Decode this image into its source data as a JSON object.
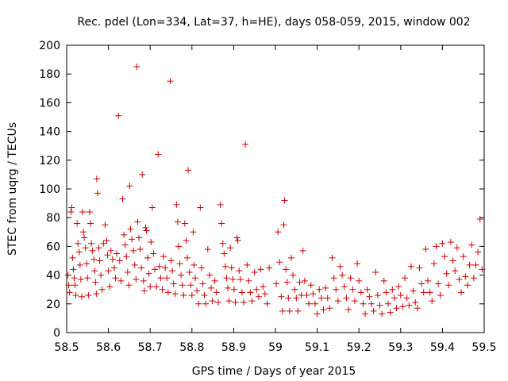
{
  "chart_data": {
    "type": "scatter",
    "title": "Rec. pdel (Lon=334, Lat=37, h=HE), days 058-059, 2015, window 002",
    "xlabel": "GPS time / Days of year 2015",
    "ylabel": "STEC from uqrg / TECUs",
    "xlim": [
      58.5,
      59.5
    ],
    "ylim": [
      0,
      200
    ],
    "xticks": [
      58.5,
      58.6,
      58.7,
      58.8,
      58.9,
      59,
      59.1,
      59.2,
      59.3,
      59.4,
      59.5
    ],
    "xtick_labels": [
      "58.5",
      "58.6",
      "58.7",
      "58.8",
      "58.9",
      "59",
      "59.1",
      "59.2",
      "59.3",
      "59.4",
      "59.5"
    ],
    "yticks": [
      0,
      20,
      40,
      60,
      80,
      100,
      120,
      140,
      160,
      180,
      200
    ],
    "ytick_labels": [
      "0",
      "20",
      "40",
      "60",
      "80",
      "100",
      "120",
      "140",
      "160",
      "180",
      "200"
    ],
    "marker": "+",
    "color": "#cc0000",
    "grid": false,
    "series": [
      {
        "name": "STEC",
        "points": [
          [
            58.503,
            40
          ],
          [
            58.505,
            33
          ],
          [
            58.507,
            28
          ],
          [
            58.51,
            84
          ],
          [
            58.512,
            87
          ],
          [
            58.514,
            52
          ],
          [
            58.516,
            44
          ],
          [
            58.518,
            38
          ],
          [
            58.52,
            33
          ],
          [
            58.522,
            26
          ],
          [
            58.525,
            76
          ],
          [
            58.527,
            62
          ],
          [
            58.53,
            56
          ],
          [
            58.532,
            47
          ],
          [
            58.534,
            37
          ],
          [
            58.536,
            25
          ],
          [
            58.538,
            84
          ],
          [
            58.54,
            70
          ],
          [
            58.542,
            66
          ],
          [
            58.545,
            59
          ],
          [
            58.548,
            48
          ],
          [
            58.55,
            38
          ],
          [
            58.552,
            26
          ],
          [
            58.555,
            84
          ],
          [
            58.557,
            76
          ],
          [
            58.559,
            62
          ],
          [
            58.562,
            57
          ],
          [
            58.565,
            51
          ],
          [
            58.567,
            43
          ],
          [
            58.569,
            35
          ],
          [
            58.571,
            27
          ],
          [
            58.572,
            107
          ],
          [
            58.574,
            97
          ],
          [
            58.577,
            59
          ],
          [
            58.579,
            50
          ],
          [
            58.582,
            40
          ],
          [
            58.585,
            30
          ],
          [
            58.588,
            62
          ],
          [
            58.592,
            75
          ],
          [
            58.596,
            64
          ],
          [
            58.598,
            54
          ],
          [
            58.6,
            43
          ],
          [
            58.603,
            32
          ],
          [
            58.606,
            57
          ],
          [
            58.61,
            51
          ],
          [
            58.614,
            45
          ],
          [
            58.617,
            38
          ],
          [
            58.62,
            55
          ],
          [
            58.624,
            151
          ],
          [
            58.627,
            50
          ],
          [
            58.63,
            36
          ],
          [
            58.634,
            93
          ],
          [
            58.637,
            68
          ],
          [
            58.64,
            61
          ],
          [
            58.643,
            53
          ],
          [
            58.646,
            42
          ],
          [
            58.649,
            33
          ],
          [
            58.651,
            102
          ],
          [
            58.653,
            72
          ],
          [
            58.656,
            65
          ],
          [
            58.66,
            57
          ],
          [
            58.663,
            47
          ],
          [
            58.666,
            37
          ],
          [
            58.668,
            185
          ],
          [
            58.67,
            77
          ],
          [
            58.673,
            66
          ],
          [
            58.676,
            58
          ],
          [
            58.679,
            45
          ],
          [
            58.681,
            110
          ],
          [
            58.684,
            36
          ],
          [
            58.686,
            29
          ],
          [
            58.689,
            73
          ],
          [
            58.691,
            71
          ],
          [
            58.694,
            52
          ],
          [
            58.697,
            41
          ],
          [
            58.7,
            32
          ],
          [
            58.702,
            63
          ],
          [
            58.705,
            87
          ],
          [
            58.708,
            55
          ],
          [
            58.711,
            44
          ],
          [
            58.715,
            32
          ],
          [
            58.719,
            124
          ],
          [
            58.722,
            46
          ],
          [
            58.725,
            38
          ],
          [
            58.729,
            30
          ],
          [
            58.732,
            53
          ],
          [
            58.736,
            45
          ],
          [
            58.74,
            38
          ],
          [
            58.743,
            28
          ],
          [
            58.748,
            175
          ],
          [
            58.75,
            50
          ],
          [
            58.753,
            43
          ],
          [
            58.756,
            34
          ],
          [
            58.76,
            27
          ],
          [
            58.763,
            89
          ],
          [
            58.766,
            77
          ],
          [
            58.768,
            60
          ],
          [
            58.771,
            48
          ],
          [
            58.774,
            40
          ],
          [
            58.777,
            33
          ],
          [
            58.78,
            26
          ],
          [
            58.783,
            76
          ],
          [
            58.786,
            64
          ],
          [
            58.789,
            52
          ],
          [
            58.791,
            113
          ],
          [
            58.794,
            42
          ],
          [
            58.797,
            33
          ],
          [
            58.8,
            26
          ],
          [
            58.803,
            70
          ],
          [
            58.805,
            47
          ],
          [
            58.808,
            38
          ],
          [
            58.812,
            29
          ],
          [
            58.816,
            20
          ],
          [
            58.82,
            87
          ],
          [
            58.823,
            45
          ],
          [
            58.826,
            34
          ],
          [
            58.83,
            26
          ],
          [
            58.833,
            20
          ],
          [
            58.838,
            58
          ],
          [
            58.842,
            40
          ],
          [
            58.846,
            31
          ],
          [
            58.849,
            22
          ],
          [
            58.855,
            36
          ],
          [
            58.859,
            28
          ],
          [
            58.863,
            21
          ],
          [
            58.868,
            89
          ],
          [
            58.871,
            76
          ],
          [
            58.874,
            62
          ],
          [
            58.877,
            55
          ],
          [
            58.88,
            46
          ],
          [
            58.883,
            38
          ],
          [
            58.886,
            31
          ],
          [
            58.889,
            22
          ],
          [
            58.892,
            59
          ],
          [
            58.895,
            45
          ],
          [
            58.898,
            37
          ],
          [
            58.901,
            30
          ],
          [
            58.904,
            21
          ],
          [
            58.908,
            66
          ],
          [
            58.91,
            64
          ],
          [
            58.913,
            43
          ],
          [
            58.916,
            37
          ],
          [
            58.92,
            28
          ],
          [
            58.924,
            21
          ],
          [
            58.928,
            131
          ],
          [
            58.932,
            47
          ],
          [
            58.936,
            36
          ],
          [
            58.94,
            28
          ],
          [
            58.944,
            22
          ],
          [
            58.95,
            42
          ],
          [
            58.955,
            30
          ],
          [
            58.96,
            25
          ],
          [
            58.965,
            44
          ],
          [
            58.97,
            32
          ],
          [
            58.975,
            27
          ],
          [
            58.98,
            20
          ],
          [
            58.985,
            45
          ],
          [
            59.002,
            34
          ],
          [
            59.006,
            70
          ],
          [
            59.01,
            49
          ],
          [
            59.014,
            25
          ],
          [
            59.017,
            15
          ],
          [
            59.02,
            75
          ],
          [
            59.022,
            92
          ],
          [
            59.025,
            44
          ],
          [
            59.028,
            35
          ],
          [
            59.031,
            24
          ],
          [
            59.034,
            15
          ],
          [
            59.038,
            52
          ],
          [
            59.042,
            40
          ],
          [
            59.046,
            30
          ],
          [
            59.05,
            24
          ],
          [
            59.054,
            15
          ],
          [
            59.058,
            35
          ],
          [
            59.062,
            26
          ],
          [
            59.066,
            57
          ],
          [
            59.07,
            36
          ],
          [
            59.075,
            26
          ],
          [
            59.08,
            20
          ],
          [
            59.085,
            33
          ],
          [
            59.09,
            27
          ],
          [
            59.095,
            20
          ],
          [
            59.1,
            13
          ],
          [
            59.105,
            30
          ],
          [
            59.11,
            24
          ],
          [
            59.115,
            16
          ],
          [
            59.12,
            31
          ],
          [
            59.125,
            24
          ],
          [
            59.13,
            17
          ],
          [
            59.136,
            52
          ],
          [
            59.14,
            38
          ],
          [
            59.145,
            30
          ],
          [
            59.15,
            22
          ],
          [
            59.155,
            46
          ],
          [
            59.16,
            40
          ],
          [
            59.165,
            32
          ],
          [
            59.17,
            24
          ],
          [
            59.175,
            16
          ],
          [
            59.18,
            38
          ],
          [
            59.185,
            30
          ],
          [
            59.19,
            22
          ],
          [
            59.196,
            48
          ],
          [
            59.2,
            36
          ],
          [
            59.205,
            28
          ],
          [
            59.21,
            20
          ],
          [
            59.215,
            13
          ],
          [
            59.22,
            30
          ],
          [
            59.225,
            25
          ],
          [
            59.23,
            20
          ],
          [
            59.235,
            15
          ],
          [
            59.24,
            42
          ],
          [
            59.245,
            26
          ],
          [
            59.25,
            19
          ],
          [
            59.255,
            13
          ],
          [
            59.26,
            36
          ],
          [
            59.265,
            28
          ],
          [
            59.27,
            20
          ],
          [
            59.275,
            14
          ],
          [
            59.28,
            30
          ],
          [
            59.285,
            24
          ],
          [
            59.29,
            17
          ],
          [
            59.295,
            32
          ],
          [
            59.3,
            26
          ],
          [
            59.305,
            18
          ],
          [
            59.31,
            38
          ],
          [
            59.315,
            24
          ],
          [
            59.32,
            19
          ],
          [
            59.325,
            46
          ],
          [
            59.33,
            29
          ],
          [
            59.335,
            21
          ],
          [
            59.34,
            17
          ],
          [
            59.345,
            45
          ],
          [
            59.35,
            34
          ],
          [
            59.355,
            28
          ],
          [
            59.36,
            58
          ],
          [
            59.365,
            36
          ],
          [
            59.37,
            28
          ],
          [
            59.375,
            22
          ],
          [
            59.38,
            48
          ],
          [
            59.385,
            60
          ],
          [
            59.39,
            34
          ],
          [
            59.395,
            26
          ],
          [
            59.4,
            62
          ],
          [
            59.405,
            53
          ],
          [
            59.41,
            41
          ],
          [
            59.415,
            33
          ],
          [
            59.42,
            63
          ],
          [
            59.425,
            50
          ],
          [
            59.43,
            43
          ],
          [
            59.435,
            59
          ],
          [
            59.44,
            37
          ],
          [
            59.445,
            28
          ],
          [
            59.45,
            53
          ],
          [
            59.455,
            39
          ],
          [
            59.46,
            33
          ],
          [
            59.465,
            47
          ],
          [
            59.47,
            61
          ],
          [
            59.475,
            38
          ],
          [
            59.48,
            47
          ],
          [
            59.485,
            56
          ],
          [
            59.49,
            79
          ],
          [
            59.495,
            44
          ]
        ]
      }
    ]
  }
}
